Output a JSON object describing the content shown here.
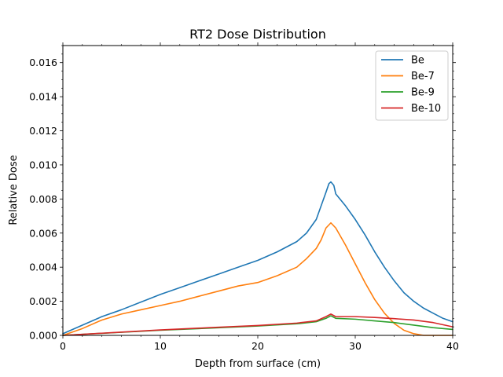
{
  "chart_data": {
    "type": "line",
    "title": "RT2 Dose Distribution",
    "xlabel": "Depth from surface (cm)",
    "ylabel": "Relative Dose",
    "xlim": [
      0,
      40
    ],
    "ylim": [
      0,
      0.017
    ],
    "x_ticks": [
      0,
      10,
      20,
      30,
      40
    ],
    "x_tick_labels": [
      "0",
      "10",
      "20",
      "30",
      "40"
    ],
    "y_ticks": [
      0,
      0.002,
      0.004,
      0.006,
      0.008,
      0.01,
      0.012,
      0.014,
      0.016
    ],
    "y_tick_labels": [
      "0.000",
      "0.002",
      "0.004",
      "0.006",
      "0.008",
      "0.010",
      "0.012",
      "0.014",
      "0.016"
    ],
    "grid": false,
    "legend_position": "top-right",
    "series": [
      {
        "name": "Be",
        "color": "#1f77b4",
        "x": [
          0,
          2,
          4,
          6,
          8,
          10,
          12,
          14,
          16,
          18,
          20,
          22,
          24,
          25,
          26,
          26.5,
          27,
          27.3,
          27.5,
          27.8,
          28,
          29,
          30,
          31,
          32,
          33,
          34,
          35,
          36,
          37,
          38,
          39,
          40
        ],
        "y": [
          0.0001,
          0.0006,
          0.0011,
          0.0015,
          0.00195,
          0.0024,
          0.0028,
          0.0032,
          0.0036,
          0.004,
          0.0044,
          0.0049,
          0.0055,
          0.006,
          0.0068,
          0.0076,
          0.0084,
          0.0089,
          0.009,
          0.0088,
          0.0083,
          0.0076,
          0.0068,
          0.0059,
          0.0049,
          0.004,
          0.0032,
          0.0025,
          0.002,
          0.0016,
          0.0013,
          0.001,
          0.0008
        ]
      },
      {
        "name": "Be-7",
        "color": "#ff7f0e",
        "x": [
          0,
          2,
          4,
          6,
          8,
          10,
          12,
          14,
          16,
          18,
          20,
          22,
          24,
          25,
          26,
          26.5,
          27,
          27.5,
          28,
          29,
          30,
          31,
          32,
          33,
          34,
          35,
          36,
          37,
          38,
          39,
          40
        ],
        "y": [
          0.0,
          0.0004,
          0.0009,
          0.00125,
          0.0015,
          0.00175,
          0.002,
          0.0023,
          0.0026,
          0.0029,
          0.0031,
          0.0035,
          0.004,
          0.0045,
          0.0051,
          0.0056,
          0.0063,
          0.0066,
          0.0063,
          0.0053,
          0.0042,
          0.0031,
          0.0021,
          0.0013,
          0.0007,
          0.0003,
          0.0001,
          0.0,
          0.0,
          0.0,
          0.0
        ]
      },
      {
        "name": "Be-9",
        "color": "#2ca02c",
        "x": [
          0,
          5,
          10,
          15,
          20,
          24,
          26,
          27,
          27.5,
          28,
          30,
          32,
          34,
          36,
          38,
          40
        ],
        "y": [
          0.0,
          0.00015,
          0.0003,
          0.00042,
          0.00055,
          0.00068,
          0.0008,
          0.001,
          0.00115,
          0.001,
          0.00095,
          0.00085,
          0.00075,
          0.0006,
          0.00045,
          0.00035
        ]
      },
      {
        "name": "Be-10",
        "color": "#d62728",
        "x": [
          0,
          5,
          10,
          15,
          20,
          24,
          26,
          27,
          27.5,
          28,
          30,
          32,
          34,
          36,
          38,
          40
        ],
        "y": [
          0.0,
          0.00016,
          0.00032,
          0.00045,
          0.00058,
          0.00072,
          0.00085,
          0.0011,
          0.00125,
          0.0011,
          0.0011,
          0.00105,
          0.00098,
          0.0009,
          0.00075,
          0.0005
        ]
      }
    ]
  }
}
